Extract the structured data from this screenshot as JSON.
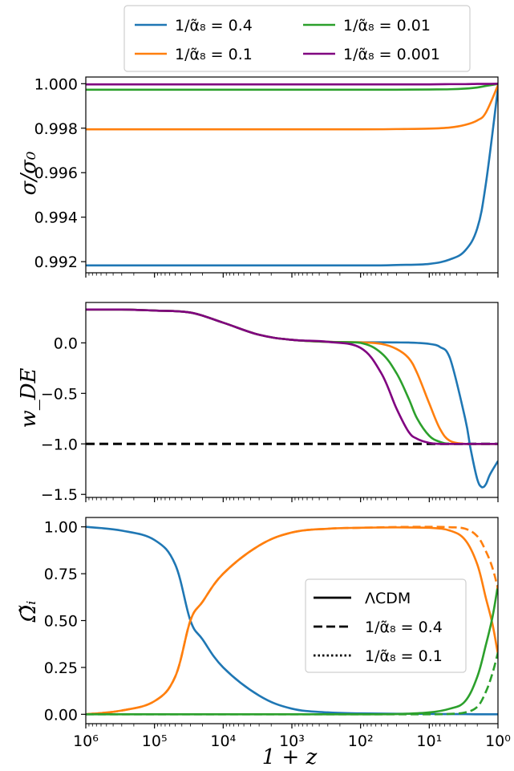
{
  "chart_data": [
    {
      "type": "line",
      "ylabel": "σ/σ₀",
      "x_scale": "log-reversed",
      "xlim": [
        1000000,
        1
      ],
      "ylim": [
        0.9915,
        1.0003
      ],
      "yticks": [
        "0.992",
        "0.994",
        "0.996",
        "0.998",
        "1.000"
      ],
      "legend_position": "above",
      "x": [
        1000000,
        100,
        30,
        10,
        5,
        3,
        2,
        1.5,
        1
      ],
      "series": [
        {
          "name": "1/α̃₈ = 0.4",
          "color": "#1f77b4",
          "values": [
            0.99183,
            0.99183,
            0.99185,
            0.9919,
            0.9921,
            0.9925,
            0.9935,
            0.9955,
            0.9998
          ]
        },
        {
          "name": "1/α̃₈ = 0.1",
          "color": "#ff7f0e",
          "values": [
            0.99795,
            0.99795,
            0.99796,
            0.99798,
            0.99803,
            0.99815,
            0.99835,
            0.9987,
            0.99993
          ]
        },
        {
          "name": "1/α̃₈ = 0.01",
          "color": "#2ca02c",
          "values": [
            0.99973,
            0.99973,
            0.99973,
            0.99974,
            0.99975,
            0.99978,
            0.99983,
            0.9999,
            0.99999
          ]
        },
        {
          "name": "1/α̃₈ = 0.001",
          "color": "#800080",
          "values": [
            0.99997,
            0.99997,
            0.99997,
            0.99997,
            0.99998,
            0.99998,
            0.99999,
            0.99999,
            1.0
          ]
        }
      ]
    },
    {
      "type": "line",
      "ylabel": "w_DE",
      "x_scale": "log-reversed",
      "xlim": [
        1000000,
        1
      ],
      "ylim": [
        -1.53,
        0.4
      ],
      "yticks": [
        "−1.5",
        "−1.0",
        "−0.5",
        "0.0"
      ],
      "reference_line": {
        "y": -1.0,
        "style": "dashed",
        "color": "#000000"
      },
      "x": [
        1000000,
        300000,
        100000,
        30000,
        10000,
        3000,
        1000,
        300,
        100,
        50,
        30,
        20,
        15,
        10,
        7,
        5,
        3,
        2.5,
        2,
        1.7,
        1.5,
        1.3,
        1
      ],
      "series": [
        {
          "color": "#1f77b4",
          "values": [
            0.33,
            0.33,
            0.32,
            0.3,
            0.2,
            0.08,
            0.03,
            0.01,
            0.005,
            0.005,
            0.004,
            0.003,
            0.0,
            -0.01,
            -0.04,
            -0.15,
            -0.75,
            -1.05,
            -1.35,
            -1.43,
            -1.4,
            -1.3,
            -1.17
          ]
        },
        {
          "color": "#ff7f0e",
          "values": [
            0.33,
            0.33,
            0.32,
            0.3,
            0.2,
            0.08,
            0.03,
            0.01,
            0.005,
            -0.01,
            -0.06,
            -0.15,
            -0.3,
            -0.6,
            -0.85,
            -0.97,
            -1.0,
            -1.0,
            -1.0,
            -1.0,
            -1.0,
            -1.0,
            -1.0
          ]
        },
        {
          "color": "#2ca02c",
          "values": [
            0.33,
            0.33,
            0.32,
            0.3,
            0.2,
            0.08,
            0.03,
            0.01,
            0.0,
            -0.1,
            -0.3,
            -0.55,
            -0.75,
            -0.92,
            -0.98,
            -1.0,
            -1.0,
            -1.0,
            -1.0,
            -1.0,
            -1.0,
            -1.0,
            -1.0
          ]
        },
        {
          "color": "#800080",
          "values": [
            0.33,
            0.33,
            0.32,
            0.3,
            0.2,
            0.08,
            0.03,
            0.01,
            -0.05,
            -0.3,
            -0.65,
            -0.88,
            -0.95,
            -0.99,
            -1.0,
            -1.0,
            -1.0,
            -1.0,
            -1.0,
            -1.0,
            -1.0,
            -1.0,
            -1.0
          ]
        }
      ]
    },
    {
      "type": "line",
      "ylabel": "Ω̃ᵢ",
      "xlabel": "1 + z",
      "x_scale": "log-reversed",
      "xlim": [
        1000000,
        1
      ],
      "ylim": [
        -0.05,
        1.05
      ],
      "xticks": [
        "10⁶",
        "10⁵",
        "10⁴",
        "10³",
        "10²",
        "10¹",
        "10⁰"
      ],
      "yticks": [
        "0.00",
        "0.25",
        "0.50",
        "0.75",
        "1.00"
      ],
      "legend_position": "center-right",
      "legend": [
        {
          "label": "ΛCDM",
          "style": "solid"
        },
        {
          "label": "1/α̃₈ = 0.4",
          "style": "dashed"
        },
        {
          "label": "1/α̃₈ = 0.1",
          "style": "dotted"
        }
      ],
      "x": [
        1000000,
        300000,
        100000,
        50000,
        30000,
        20000,
        10000,
        3000,
        1000,
        300,
        100,
        30,
        10,
        5,
        3,
        2,
        1.5,
        1.2,
        1
      ],
      "series": [
        {
          "color": "#1f77b4",
          "style": "solid",
          "values": [
            1.0,
            0.98,
            0.93,
            0.8,
            0.5,
            0.4,
            0.25,
            0.1,
            0.03,
            0.01,
            0.005,
            0.003,
            0.002,
            0.001,
            0.001,
            0.0,
            0.0,
            0.0,
            0.0
          ]
        },
        {
          "color": "#ff7f0e",
          "style": "solid",
          "values": [
            0.0,
            0.02,
            0.07,
            0.2,
            0.5,
            0.6,
            0.75,
            0.9,
            0.97,
            0.99,
            0.995,
            0.997,
            0.995,
            0.98,
            0.93,
            0.8,
            0.62,
            0.48,
            0.32
          ]
        },
        {
          "color": "#2ca02c",
          "style": "solid",
          "values": [
            0.0,
            0.0,
            0.0,
            0.0,
            0.0,
            0.0,
            0.0,
            0.0,
            0.0,
            0.0,
            0.0,
            0.001,
            0.01,
            0.03,
            0.07,
            0.2,
            0.37,
            0.52,
            0.69
          ]
        },
        {
          "color": "#ff7f0e",
          "style": "dashed",
          "values": [
            0.0,
            0.02,
            0.07,
            0.2,
            0.5,
            0.6,
            0.75,
            0.9,
            0.97,
            0.99,
            0.995,
            0.999,
            1.0,
            0.998,
            0.99,
            0.95,
            0.87,
            0.78,
            0.67
          ]
        },
        {
          "color": "#2ca02c",
          "style": "dashed",
          "values": [
            0.0,
            0.0,
            0.0,
            0.0,
            0.0,
            0.0,
            0.0,
            0.0,
            0.0,
            0.0,
            0.0,
            0.0,
            0.0,
            0.002,
            0.01,
            0.04,
            0.12,
            0.22,
            0.33
          ]
        }
      ]
    }
  ]
}
